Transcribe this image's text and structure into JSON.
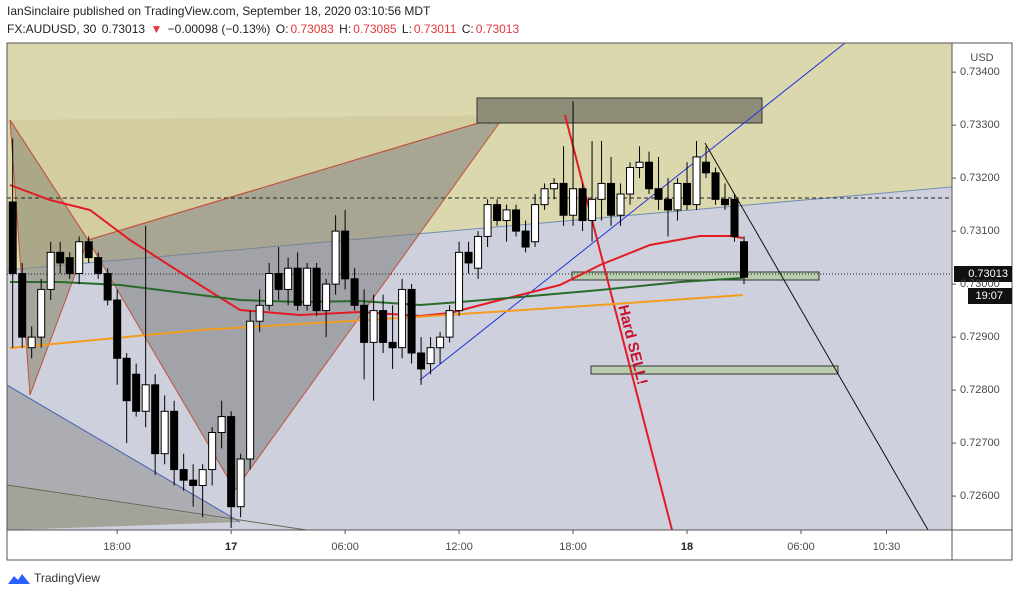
{
  "header": {
    "published": "IanSinclaire published on TradingView.com, September 18, 2020 03:10:56 MDT",
    "symbol": "FX:AUDUSD, 30",
    "last": "0.73013",
    "arrow": "▼",
    "change": "−0.00098 (−0.13%)",
    "ohlc": [
      {
        "label": "O:",
        "value": "0.73083"
      },
      {
        "label": "H:",
        "value": "0.73085"
      },
      {
        "label": "L:",
        "value": "0.73011"
      },
      {
        "label": "C:",
        "value": "0.73013"
      }
    ]
  },
  "chart_data": {
    "type": "candlestick",
    "currency": "USD",
    "annotation": "Hard SELL!",
    "last_price_label": "0.73013",
    "countdown": "19:07",
    "logo": "TradingView",
    "up_color": "#ffffff",
    "down_color": "#000000",
    "x": [
      12.5,
      13,
      13.5,
      14,
      14.5,
      15,
      15.5,
      16,
      16.5,
      17,
      17.5,
      18,
      18.5,
      19,
      19.5,
      20,
      20.5,
      21,
      21.5,
      22,
      22.5,
      23,
      23.5,
      24,
      24.5,
      25,
      25.5,
      26,
      26.5,
      27,
      27.5,
      28,
      28.5,
      29,
      29.5,
      30,
      30.5,
      31,
      31.5,
      32,
      32.5,
      33,
      33.5,
      34,
      34.5,
      35,
      35.5,
      36,
      36.5,
      37,
      37.5,
      38,
      38.5,
      39,
      39.5,
      40,
      40.5,
      41,
      41.5,
      42,
      42.5,
      43,
      43.5,
      44,
      44.5,
      45,
      45.5,
      46,
      46.5,
      47,
      47.5,
      48,
      48.5,
      49,
      49.5,
      50,
      50.5,
      51
    ],
    "open": [
      0.73155,
      0.7302,
      0.7288,
      0.729,
      0.7299,
      0.7306,
      0.7305,
      0.7302,
      0.7308,
      0.7305,
      0.7302,
      0.7297,
      0.7286,
      0.7283,
      0.7276,
      0.7281,
      0.7268,
      0.7276,
      0.7265,
      0.7263,
      0.7262,
      0.7265,
      0.7272,
      0.7275,
      0.7258,
      0.7267,
      0.7293,
      0.7296,
      0.7302,
      0.7299,
      0.7303,
      0.7296,
      0.7303,
      0.7295,
      0.73,
      0.731,
      0.7301,
      0.7296,
      0.7289,
      0.7295,
      0.7289,
      0.7288,
      0.7299,
      0.7287,
      0.7285,
      0.7288,
      0.729,
      0.7295,
      0.7306,
      0.7303,
      0.7309,
      0.7315,
      0.7312,
      0.7314,
      0.731,
      0.7308,
      0.7315,
      0.7318,
      0.7319,
      0.7313,
      0.7318,
      0.7312,
      0.7316,
      0.7319,
      0.7313,
      0.7317,
      0.7322,
      0.7323,
      0.7318,
      0.7316,
      0.7314,
      0.7319,
      0.7315,
      0.7323,
      0.7321,
      0.7316,
      0.7316,
      0.7308
    ],
    "high": [
      0.73275,
      0.7304,
      0.7292,
      0.7301,
      0.7308,
      0.7308,
      0.7306,
      0.7309,
      0.7309,
      0.7306,
      0.7303,
      0.7299,
      0.7287,
      0.7285,
      0.7311,
      0.7283,
      0.7279,
      0.7278,
      0.7268,
      0.7266,
      0.7266,
      0.7273,
      0.7278,
      0.7276,
      0.7268,
      0.7295,
      0.7299,
      0.7304,
      0.7307,
      0.7305,
      0.7306,
      0.7304,
      0.7304,
      0.7301,
      0.7313,
      0.7314,
      0.7303,
      0.7299,
      0.7298,
      0.7298,
      0.7296,
      0.7301,
      0.73,
      0.729,
      0.729,
      0.7291,
      0.7296,
      0.7308,
      0.7308,
      0.731,
      0.7316,
      0.7316,
      0.7315,
      0.7315,
      0.7312,
      0.7317,
      0.7319,
      0.732,
      0.7326,
      0.73345,
      0.7319,
      0.7327,
      0.7327,
      0.7324,
      0.7319,
      0.7323,
      0.7326,
      0.7325,
      0.7324,
      0.732,
      0.732,
      0.7323,
      0.7327,
      0.7326,
      0.7322,
      0.7319,
      0.7317,
      0.7309
    ],
    "low": [
      0.7288,
      0.7288,
      0.7286,
      0.7288,
      0.7297,
      0.7302,
      0.7301,
      0.73,
      0.7304,
      0.7301,
      0.7296,
      0.7281,
      0.727,
      0.7275,
      0.7273,
      0.7264,
      0.7266,
      0.7262,
      0.7261,
      0.7258,
      0.7256,
      0.7262,
      0.7269,
      0.7254,
      0.7256,
      0.7265,
      0.7291,
      0.7295,
      0.7297,
      0.7296,
      0.7295,
      0.7295,
      0.7294,
      0.729,
      0.7298,
      0.7299,
      0.7295,
      0.7282,
      0.7278,
      0.7287,
      0.7284,
      0.7286,
      0.7285,
      0.7281,
      0.7283,
      0.7285,
      0.7289,
      0.7294,
      0.7302,
      0.7301,
      0.7307,
      0.7311,
      0.7308,
      0.7309,
      0.7306,
      0.7307,
      0.7314,
      0.7316,
      0.7311,
      0.7311,
      0.731,
      0.7308,
      0.7312,
      0.7311,
      0.7311,
      0.7315,
      0.732,
      0.7317,
      0.7314,
      0.7309,
      0.7312,
      0.7314,
      0.7314,
      0.732,
      0.7315,
      0.7314,
      0.7308,
      0.73
    ],
    "close": [
      0.7302,
      0.729,
      0.729,
      0.7299,
      0.7306,
      0.7304,
      0.7302,
      0.7308,
      0.7305,
      0.7302,
      0.7297,
      0.7286,
      0.7278,
      0.7276,
      0.7281,
      0.7268,
      0.7276,
      0.7265,
      0.7263,
      0.7262,
      0.7265,
      0.7272,
      0.7275,
      0.7258,
      0.7267,
      0.7293,
      0.7296,
      0.7302,
      0.7299,
      0.7303,
      0.7296,
      0.7303,
      0.7295,
      0.73,
      0.731,
      0.7301,
      0.7296,
      0.7289,
      0.7295,
      0.7289,
      0.7288,
      0.7299,
      0.7287,
      0.7284,
      0.7288,
      0.729,
      0.7295,
      0.7306,
      0.7304,
      0.7309,
      0.7315,
      0.7312,
      0.7314,
      0.731,
      0.7307,
      0.7315,
      0.7318,
      0.7319,
      0.7313,
      0.7318,
      0.7312,
      0.7316,
      0.7319,
      0.7313,
      0.7317,
      0.7322,
      0.7323,
      0.7318,
      0.7316,
      0.7314,
      0.7319,
      0.7315,
      0.7324,
      0.7321,
      0.7316,
      0.7315,
      0.7309,
      0.73013
    ],
    "xlim": [
      12.2,
      61.95
    ],
    "xticks": [
      {
        "value": 18,
        "label": "18:00"
      },
      {
        "value": 24,
        "label": "17"
      },
      {
        "value": 30,
        "label": "06:00"
      },
      {
        "value": 36,
        "label": "12:00"
      },
      {
        "value": 42,
        "label": "18:00"
      },
      {
        "value": 48,
        "label": "18"
      },
      {
        "value": 54,
        "label": "06:00"
      },
      {
        "value": 58.5,
        "label": "10:30"
      }
    ],
    "ylim": [
      0.72536,
      0.73455
    ],
    "yticks": [
      {
        "value": 0.726,
        "label": "0.72600"
      },
      {
        "value": 0.727,
        "label": "0.72700"
      },
      {
        "value": 0.728,
        "label": "0.72800"
      },
      {
        "value": 0.729,
        "label": "0.72900"
      },
      {
        "value": 0.73,
        "label": "0.73000"
      },
      {
        "value": 0.731,
        "label": "0.73100"
      },
      {
        "value": 0.732,
        "label": "0.73200"
      },
      {
        "value": 0.733,
        "label": "0.73300"
      },
      {
        "value": 0.734,
        "label": "0.73400"
      }
    ]
  }
}
